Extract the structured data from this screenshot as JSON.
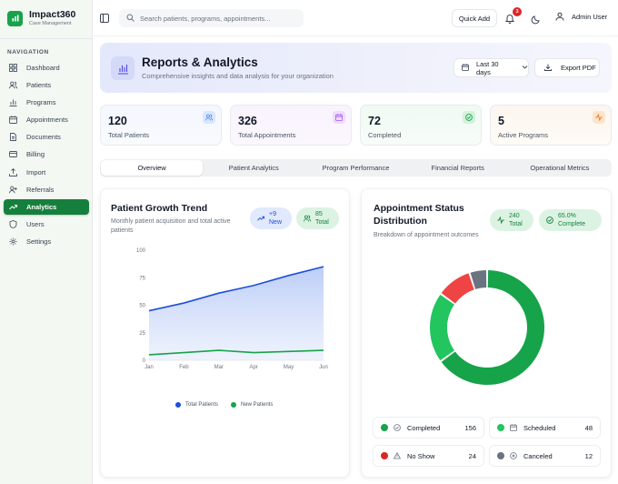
{
  "brand": {
    "name": "Impact360",
    "subtitle": "Case Management"
  },
  "nav": {
    "heading": "NAVIGATION",
    "items": [
      {
        "label": "Dashboard",
        "icon": "dashboard-icon"
      },
      {
        "label": "Patients",
        "icon": "users-icon"
      },
      {
        "label": "Programs",
        "icon": "bar-chart-icon"
      },
      {
        "label": "Appointments",
        "icon": "calendar-icon"
      },
      {
        "label": "Documents",
        "icon": "document-icon"
      },
      {
        "label": "Billing",
        "icon": "credit-card-icon"
      },
      {
        "label": "Import",
        "icon": "upload-icon"
      },
      {
        "label": "Referrals",
        "icon": "user-plus-icon"
      },
      {
        "label": "Analytics",
        "icon": "trending-up-icon",
        "active": true
      },
      {
        "label": "Users",
        "icon": "shield-icon"
      },
      {
        "label": "Settings",
        "icon": "gear-icon"
      }
    ]
  },
  "topbar": {
    "search_placeholder": "Search patients, programs, appointments...",
    "quick_add": "Quick Add",
    "notification_count": "3",
    "user_name": "Admin User"
  },
  "hero": {
    "title": "Reports & Analytics",
    "subtitle": "Comprehensive insights and data analysis for your organization",
    "date_range": "Last 30 days",
    "export_label": "Export PDF"
  },
  "stats": [
    {
      "value": "120",
      "label": "Total Patients",
      "icon": "users-icon",
      "color": "#3b82f6"
    },
    {
      "value": "326",
      "label": "Total Appointments",
      "icon": "calendar-icon",
      "color": "#a855f7"
    },
    {
      "value": "72",
      "label": "Completed",
      "icon": "check-circle-icon",
      "color": "#16a34a"
    },
    {
      "value": "5",
      "label": "Active Programs",
      "icon": "activity-icon",
      "color": "#f97316"
    }
  ],
  "tabs": [
    "Overview",
    "Patient Analytics",
    "Program Performance",
    "Financial Reports",
    "Operational Metrics"
  ],
  "growth": {
    "title": "Patient Growth Trend",
    "subtitle": "Monthly patient acquisition and total active patients",
    "pill_new": "+9 New",
    "pill_total": "85 Total",
    "legend_total": "Total Patients",
    "legend_new": "New Patients"
  },
  "appointments": {
    "title": "Appointment Status Distribution",
    "subtitle": "Breakdown of appointment outcomes",
    "pill_total": "240 Total",
    "pill_complete": "65.0% Complete",
    "statuses": [
      {
        "label": "Completed",
        "count": "156",
        "color": "#16a34a"
      },
      {
        "label": "Scheduled",
        "count": "48",
        "color": "#22c55e"
      },
      {
        "label": "No Show",
        "count": "24",
        "color": "#dc2626"
      },
      {
        "label": "Canceled",
        "count": "12",
        "color": "#6b7280"
      }
    ]
  },
  "chart_data": [
    {
      "type": "area",
      "categories": [
        "Jan",
        "Feb",
        "Mar",
        "Apr",
        "May",
        "Jun"
      ],
      "ylim": [
        0,
        100
      ],
      "yticks": [
        0,
        25,
        50,
        75,
        100
      ],
      "series": [
        {
          "name": "Total Patients",
          "values": [
            45,
            52,
            61,
            68,
            77,
            85
          ],
          "color": "#1d4ed8"
        },
        {
          "name": "New Patients",
          "values": [
            5,
            7,
            9,
            7,
            8,
            9
          ],
          "color": "#16a34a"
        }
      ]
    },
    {
      "type": "pie",
      "donut": true,
      "categories": [
        "Completed",
        "Scheduled",
        "No Show",
        "Canceled"
      ],
      "values": [
        156,
        48,
        24,
        12
      ],
      "colors": [
        "#16a34a",
        "#22c55e",
        "#ef4444",
        "#6b7280"
      ]
    }
  ]
}
